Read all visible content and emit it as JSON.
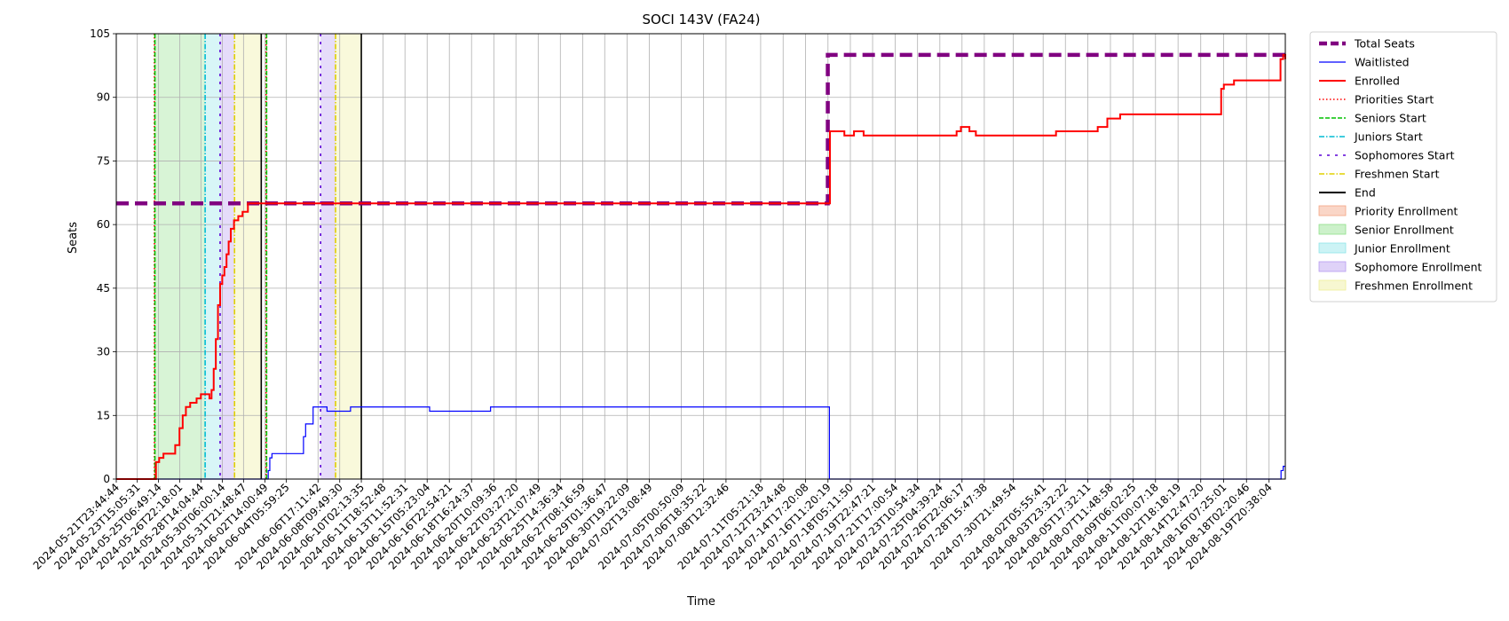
{
  "chart_data": {
    "type": "line",
    "title": "SOCI 143V (FA24)",
    "xlabel": "Time",
    "ylabel": "Seats",
    "ylim": [
      0,
      105
    ],
    "yticks": [
      0,
      15,
      30,
      45,
      60,
      75,
      90,
      105
    ],
    "x_start": "2024-05-21T23:44:44",
    "x_end": "2024-08-21T03:00:00",
    "x_ticks": [
      "2024-05-21T23:44:44",
      "2024-05-23T15:05:31",
      "2024-05-25T06:49:14",
      "2024-05-26T22:18:01",
      "2024-05-28T14:04:44",
      "2024-05-30T06:00:14",
      "2024-05-31T21:48:47",
      "2024-06-02T14:00:49",
      "2024-06-04T05:59:25",
      "2024-06-06T17:11:42",
      "2024-06-08T09:49:30",
      "2024-06-10T02:13:35",
      "2024-06-11T18:52:48",
      "2024-06-13T11:52:31",
      "2024-06-15T05:23:04",
      "2024-06-16T22:54:21",
      "2024-06-18T16:24:37",
      "2024-06-20T10:09:36",
      "2024-06-22T03:27:20",
      "2024-06-23T21:07:49",
      "2024-06-25T14:36:34",
      "2024-06-27T08:16:59",
      "2024-06-29T01:36:47",
      "2024-06-30T19:22:09",
      "2024-07-02T13:08:49",
      "2024-07-05T00:50:09",
      "2024-07-06T18:35:22",
      "2024-07-08T12:32:46",
      "2024-07-11T05:21:18",
      "2024-07-12T23:24:48",
      "2024-07-14T17:20:08",
      "2024-07-16T11:20:19",
      "2024-07-18T05:11:50",
      "2024-07-19T22:47:21",
      "2024-07-21T17:00:54",
      "2024-07-23T10:54:34",
      "2024-07-25T04:39:24",
      "2024-07-26T22:06:17",
      "2024-07-28T15:47:38",
      "2024-07-30T21:49:54",
      "2024-08-02T05:55:41",
      "2024-08-03T23:32:22",
      "2024-08-05T17:32:11",
      "2024-08-07T11:48:58",
      "2024-08-09T06:02:25",
      "2024-08-11T00:07:18",
      "2024-08-12T18:18:19",
      "2024-08-14T12:47:20",
      "2024-08-16T07:25:01",
      "2024-08-18T02:20:46",
      "2024-08-19T20:38:04"
    ],
    "grid": true,
    "legend_position": "outside-right",
    "series": [
      {
        "name": "Total Seats",
        "color": "#800080",
        "style": "dashed-thick",
        "step": true,
        "points": [
          [
            "2024-05-21T23:44:44",
            65
          ],
          [
            "2024-07-16T11:00:00",
            65
          ],
          [
            "2024-07-16T11:00:00",
            100
          ],
          [
            "2024-08-21T03:00:00",
            100
          ]
        ]
      },
      {
        "name": "Waitlisted",
        "color": "#0000ff",
        "style": "solid-thin",
        "step": true,
        "points": [
          [
            "2024-05-21T23:44:44",
            0
          ],
          [
            "2024-06-02T18:00:00",
            0
          ],
          [
            "2024-06-02T20:00:00",
            2
          ],
          [
            "2024-06-02T23:00:00",
            5
          ],
          [
            "2024-06-03T03:00:00",
            6
          ],
          [
            "2024-06-05T09:00:00",
            6
          ],
          [
            "2024-06-05T14:00:00",
            10
          ],
          [
            "2024-06-05T18:00:00",
            13
          ],
          [
            "2024-06-06T08:00:00",
            17
          ],
          [
            "2024-06-07T06:00:00",
            17
          ],
          [
            "2024-06-07T10:00:00",
            16
          ],
          [
            "2024-06-09T06:00:00",
            16
          ],
          [
            "2024-06-09T06:00:00",
            17
          ],
          [
            "2024-06-15T10:00:00",
            17
          ],
          [
            "2024-06-15T10:00:00",
            16
          ],
          [
            "2024-06-20T04:00:00",
            16
          ],
          [
            "2024-06-20T04:00:00",
            17
          ],
          [
            "2024-07-16T14:00:00",
            17
          ],
          [
            "2024-07-16T14:00:00",
            0
          ],
          [
            "2024-08-20T16:00:00",
            0
          ],
          [
            "2024-08-20T19:00:00",
            2
          ],
          [
            "2024-08-20T23:00:00",
            3
          ],
          [
            "2024-08-21T03:00:00",
            3
          ]
        ]
      },
      {
        "name": "Enrolled",
        "color": "#ff0000",
        "style": "solid",
        "step": true,
        "points": [
          [
            "2024-05-21T23:44:44",
            0
          ],
          [
            "2024-05-25T00:00:00",
            0
          ],
          [
            "2024-05-25T02:00:00",
            4
          ],
          [
            "2024-05-25T08:00:00",
            5
          ],
          [
            "2024-05-25T16:00:00",
            6
          ],
          [
            "2024-05-26T09:00:00",
            6
          ],
          [
            "2024-05-26T14:00:00",
            8
          ],
          [
            "2024-05-26T22:00:00",
            12
          ],
          [
            "2024-05-27T04:00:00",
            15
          ],
          [
            "2024-05-27T10:00:00",
            17
          ],
          [
            "2024-05-27T18:00:00",
            18
          ],
          [
            "2024-05-28T06:00:00",
            19
          ],
          [
            "2024-05-28T14:00:00",
            20
          ],
          [
            "2024-05-29T00:00:00",
            20
          ],
          [
            "2024-05-29T06:00:00",
            19
          ],
          [
            "2024-05-29T10:00:00",
            21
          ],
          [
            "2024-05-29T14:00:00",
            26
          ],
          [
            "2024-05-29T18:00:00",
            33
          ],
          [
            "2024-05-29T22:00:00",
            41
          ],
          [
            "2024-05-30T02:00:00",
            46
          ],
          [
            "2024-05-30T06:00:00",
            48
          ],
          [
            "2024-05-30T10:00:00",
            50
          ],
          [
            "2024-05-30T14:00:00",
            53
          ],
          [
            "2024-05-30T18:00:00",
            56
          ],
          [
            "2024-05-30T22:00:00",
            59
          ],
          [
            "2024-05-31T04:00:00",
            61
          ],
          [
            "2024-05-31T12:00:00",
            62
          ],
          [
            "2024-05-31T20:00:00",
            63
          ],
          [
            "2024-06-01T06:00:00",
            65
          ],
          [
            "2024-07-16T14:00:00",
            65
          ],
          [
            "2024-07-16T15:00:00",
            82
          ],
          [
            "2024-07-17T18:00:00",
            81
          ],
          [
            "2024-07-18T12:00:00",
            82
          ],
          [
            "2024-07-19T06:00:00",
            81
          ],
          [
            "2024-07-26T06:00:00",
            81
          ],
          [
            "2024-07-26T12:00:00",
            82
          ],
          [
            "2024-07-26T20:00:00",
            83
          ],
          [
            "2024-07-27T12:00:00",
            82
          ],
          [
            "2024-07-28T00:00:00",
            81
          ],
          [
            "2024-08-03T06:00:00",
            81
          ],
          [
            "2024-08-03T06:00:00",
            82
          ],
          [
            "2024-08-06T12:00:00",
            82
          ],
          [
            "2024-08-06T12:00:00",
            83
          ],
          [
            "2024-08-07T06:00:00",
            83
          ],
          [
            "2024-08-07T06:00:00",
            85
          ],
          [
            "2024-08-08T06:00:00",
            85
          ],
          [
            "2024-08-08T06:00:00",
            86
          ],
          [
            "2024-08-16T00:00:00",
            86
          ],
          [
            "2024-08-16T03:00:00",
            92
          ],
          [
            "2024-08-16T08:00:00",
            93
          ],
          [
            "2024-08-17T03:00:00",
            93
          ],
          [
            "2024-08-17T03:00:00",
            94
          ],
          [
            "2024-08-20T14:00:00",
            94
          ],
          [
            "2024-08-20T18:00:00",
            99
          ],
          [
            "2024-08-20T23:00:00",
            100
          ],
          [
            "2024-08-21T03:00:00",
            99
          ]
        ]
      }
    ],
    "vlines": [
      {
        "name": "Priorities Start",
        "color": "#ff0000",
        "style": "dotted",
        "at": [
          "2024-05-24T23:00:00",
          "2024-06-02T16:00:00"
        ]
      },
      {
        "name": "Seniors Start",
        "color": "#00c000",
        "style": "dashed",
        "at": [
          "2024-05-25T00:00:00",
          "2024-06-02T17:00:00"
        ]
      },
      {
        "name": "Juniors Start",
        "color": "#00bcd4",
        "style": "dashdot",
        "at": [
          "2024-05-28T22:00:00"
        ]
      },
      {
        "name": "Sophomores Start",
        "color": "#5a00d6",
        "style": "sparse-dashed",
        "at": [
          "2024-05-30T02:00:00",
          "2024-06-06T22:00:00"
        ]
      },
      {
        "name": "Freshmen Start",
        "color": "#e0d000",
        "style": "dashdot",
        "at": [
          "2024-05-31T05:00:00",
          "2024-06-08T02:00:00"
        ]
      },
      {
        "name": "End",
        "color": "#000000",
        "style": "solid",
        "at": [
          "2024-06-02T07:00:00",
          "2024-06-10T02:13:35"
        ]
      }
    ],
    "spans": [
      {
        "name": "Priority Enrollment",
        "color": "#f4a582",
        "ranges": [
          [
            "2024-05-24T23:00:00",
            "2024-05-25T00:00:00"
          ],
          [
            "2024-06-02T16:00:00",
            "2024-06-02T17:00:00"
          ]
        ]
      },
      {
        "name": "Senior Enrollment",
        "color": "#8fe08a",
        "ranges": [
          [
            "2024-05-25T00:00:00",
            "2024-05-28T22:00:00"
          ]
        ]
      },
      {
        "name": "Junior Enrollment",
        "color": "#8ee5e8",
        "ranges": [
          [
            "2024-05-28T22:00:00",
            "2024-05-30T02:00:00"
          ]
        ]
      },
      {
        "name": "Sophomore Enrollment",
        "color": "#b79cf0",
        "ranges": [
          [
            "2024-05-30T02:00:00",
            "2024-05-31T05:00:00"
          ],
          [
            "2024-06-06T22:00:00",
            "2024-06-08T02:00:00"
          ]
        ]
      },
      {
        "name": "Freshmen Enrollment",
        "color": "#eeee99",
        "ranges": [
          [
            "2024-05-31T05:00:00",
            "2024-06-02T07:00:00"
          ],
          [
            "2024-06-08T02:00:00",
            "2024-06-10T02:13:35"
          ]
        ]
      }
    ],
    "legend": [
      {
        "label": "Total Seats",
        "kind": "line",
        "color": "#800080",
        "style": "dashed-thick"
      },
      {
        "label": "Waitlisted",
        "kind": "line",
        "color": "#0000ff",
        "style": "solid-thin"
      },
      {
        "label": "Enrolled",
        "kind": "line",
        "color": "#ff0000",
        "style": "solid"
      },
      {
        "label": "Priorities Start",
        "kind": "line",
        "color": "#ff0000",
        "style": "dotted"
      },
      {
        "label": "Seniors Start",
        "kind": "line",
        "color": "#00c000",
        "style": "dashed"
      },
      {
        "label": "Juniors Start",
        "kind": "line",
        "color": "#00bcd4",
        "style": "dashdot"
      },
      {
        "label": "Sophomores Start",
        "kind": "line",
        "color": "#5a00d6",
        "style": "sparse-dashed"
      },
      {
        "label": "Freshmen Start",
        "kind": "line",
        "color": "#e0d000",
        "style": "dashdot"
      },
      {
        "label": "End",
        "kind": "line",
        "color": "#000000",
        "style": "solid"
      },
      {
        "label": "Priority Enrollment",
        "kind": "patch",
        "color": "#f4a582"
      },
      {
        "label": "Senior Enrollment",
        "kind": "patch",
        "color": "#8fe08a"
      },
      {
        "label": "Junior Enrollment",
        "kind": "patch",
        "color": "#8ee5e8"
      },
      {
        "label": "Sophomore Enrollment",
        "kind": "patch",
        "color": "#b79cf0"
      },
      {
        "label": "Freshmen Enrollment",
        "kind": "patch",
        "color": "#eeee99"
      }
    ]
  }
}
